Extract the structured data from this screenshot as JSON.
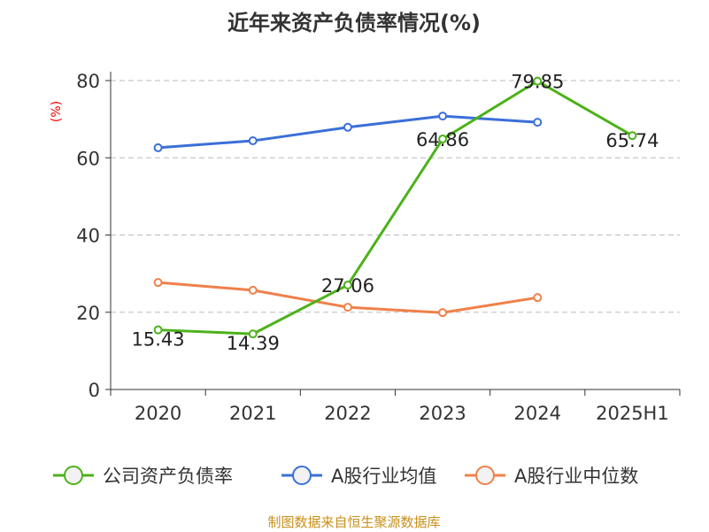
{
  "chart_data": {
    "type": "line",
    "title": "近年来资产负债率情况(%)",
    "ylabel": "(%)",
    "xlabel": "",
    "categories": [
      "2020",
      "2021",
      "2022",
      "2023",
      "2024",
      "2025H1"
    ],
    "ylim": [
      0,
      80
    ],
    "yticks": [
      0,
      20,
      40,
      60,
      80
    ],
    "grid": true,
    "legend_position": "bottom",
    "series": [
      {
        "name": "公司资产负债率",
        "color": "#4cb21a",
        "values": [
          15.43,
          14.39,
          27.06,
          64.86,
          79.85,
          65.74
        ],
        "labels": [
          "15.43",
          "14.39",
          "27.06",
          "64.86",
          "79.85",
          "65.74"
        ]
      },
      {
        "name": "A股行业均值",
        "color": "#3a6fd8",
        "values": [
          62.6,
          64.4,
          67.9,
          70.8,
          69.2,
          null
        ]
      },
      {
        "name": "A股行业中位数",
        "color": "#f0804a",
        "values": [
          27.7,
          25.7,
          21.3,
          19.9,
          23.8,
          null
        ]
      }
    ],
    "source": "制图数据来自恒生聚源数据库"
  }
}
